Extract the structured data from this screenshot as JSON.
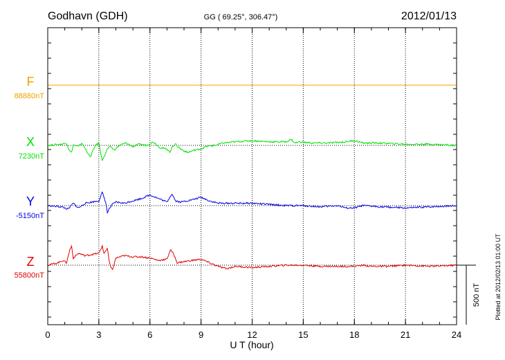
{
  "header": {
    "station": "Godhavn (GDH)",
    "coords": "GG ( 69.25°, 306.47°)",
    "date": "2012/01/13"
  },
  "footer": {
    "scale_label": "500 nT",
    "plotted_note": "Plotted at 2012/02/13 01:00 UT"
  },
  "chart_data": {
    "type": "line",
    "title": "Godhavn (GDH)",
    "xlabel": "U T (hour)",
    "ylabel": "",
    "xlim": [
      0,
      24
    ],
    "xticks": [
      "0",
      "3",
      "6",
      "9",
      "12",
      "15",
      "18",
      "21",
      "24"
    ],
    "grid": true,
    "scale_bar_nT": 500,
    "series": [
      {
        "name": "F",
        "baseline_label": "88880nT",
        "color": "#f0a000",
        "x": [
          0,
          24
        ],
        "y": [
          0,
          0
        ]
      },
      {
        "name": "X",
        "baseline_label": "7230nT",
        "color": "#00e000",
        "x": [
          0,
          0.8,
          1.1,
          1.3,
          1.4,
          1.5,
          1.8,
          2.0,
          2.3,
          2.5,
          2.6,
          2.8,
          3.0,
          3.1,
          3.2,
          3.3,
          3.5,
          3.7,
          3.9,
          4.2,
          4.6,
          5.0,
          5.4,
          5.8,
          6.2,
          6.6,
          7.0,
          7.2,
          7.3,
          7.5,
          7.8,
          8.2,
          8.6,
          9.0,
          9.3,
          9.8,
          10.3,
          11.0,
          12.0,
          13.0,
          14.0,
          14.3,
          14.5,
          14.8,
          15.5,
          16.5,
          17.5,
          18.0,
          18.5,
          19.5,
          21.0,
          22.5,
          24.0
        ],
        "y": [
          0,
          10,
          20,
          -50,
          -60,
          5,
          -10,
          20,
          -50,
          -100,
          -60,
          0,
          20,
          -60,
          -120,
          -100,
          -30,
          -10,
          -40,
          0,
          20,
          -10,
          10,
          0,
          30,
          -20,
          -30,
          -60,
          -10,
          10,
          -30,
          -60,
          -40,
          -30,
          -10,
          0,
          20,
          30,
          40,
          30,
          30,
          50,
          20,
          30,
          20,
          20,
          30,
          40,
          20,
          20,
          10,
          10,
          0
        ]
      },
      {
        "name": "Y",
        "baseline_label": "-5150nT",
        "color": "#0000e0",
        "x": [
          0,
          0.8,
          1.2,
          1.5,
          1.8,
          2.2,
          2.6,
          3.0,
          3.2,
          3.4,
          3.5,
          3.6,
          3.8,
          4.0,
          4.5,
          5.0,
          5.5,
          6.0,
          6.5,
          7.0,
          7.2,
          7.3,
          7.5,
          7.8,
          8.5,
          9.0,
          9.5,
          10.0,
          11.0,
          12.0,
          13.0,
          14.0,
          15.0,
          16.0,
          17.0,
          17.5,
          18.0,
          18.5,
          19.5,
          21.0,
          22.5,
          24.0
        ],
        "y": [
          0,
          -10,
          -30,
          20,
          -20,
          20,
          30,
          40,
          110,
          30,
          -60,
          -30,
          10,
          30,
          20,
          40,
          60,
          90,
          60,
          30,
          80,
          100,
          40,
          30,
          50,
          70,
          40,
          20,
          20,
          20,
          10,
          0,
          0,
          -10,
          0,
          -20,
          -20,
          0,
          -10,
          -20,
          -10,
          0
        ]
      },
      {
        "name": "Z",
        "baseline_label": "55800nT",
        "color": "#e00000",
        "x": [
          0,
          0.6,
          0.9,
          1.1,
          1.3,
          1.4,
          1.5,
          1.8,
          2.2,
          2.6,
          3.0,
          3.2,
          3.3,
          3.5,
          3.6,
          3.7,
          3.8,
          4.0,
          4.5,
          5.0,
          5.5,
          6.0,
          6.5,
          7.0,
          7.2,
          7.4,
          7.6,
          8.0,
          8.5,
          9.0,
          9.5,
          10.0,
          10.5,
          11.0,
          12.0,
          13.0,
          14.0,
          15.0,
          16.0,
          17.0,
          18.0,
          18.5,
          19.0,
          20.0,
          21.0,
          22.5,
          24.0
        ],
        "y": [
          0,
          20,
          40,
          20,
          130,
          160,
          60,
          100,
          80,
          90,
          100,
          160,
          100,
          140,
          40,
          -20,
          -40,
          60,
          80,
          70,
          70,
          60,
          40,
          50,
          130,
          90,
          20,
          30,
          40,
          50,
          20,
          -10,
          -30,
          -10,
          -20,
          -10,
          0,
          0,
          -10,
          -10,
          -10,
          0,
          -10,
          -10,
          0,
          -10,
          0
        ]
      }
    ]
  }
}
